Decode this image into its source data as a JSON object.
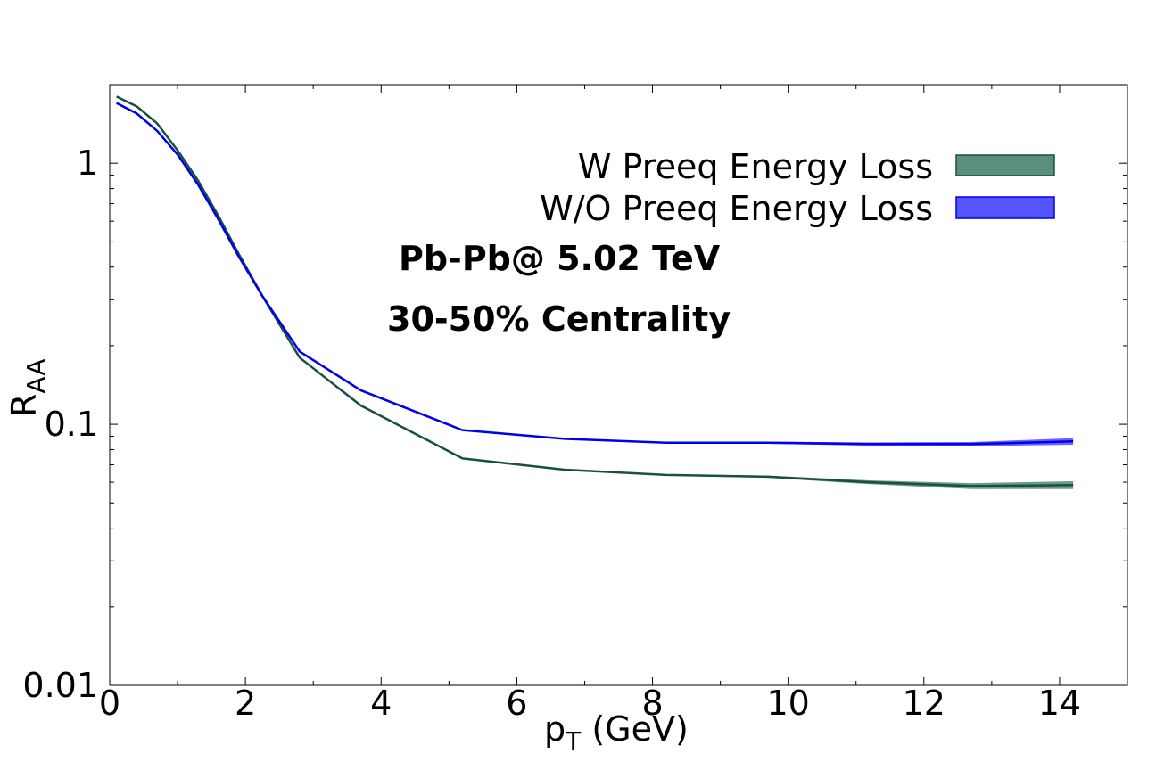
{
  "chart_data": {
    "type": "line",
    "title": "",
    "xlabel": "p",
    "xlabel_sub": "T",
    "xlabel_unit": " (GeV)",
    "ylabel": "R",
    "ylabel_sub": "AA",
    "xlim": [
      0,
      15
    ],
    "ylim": [
      0.01,
      2
    ],
    "yscale": "log",
    "x_ticks": [
      0,
      2,
      4,
      6,
      8,
      10,
      12,
      14
    ],
    "x_tick_labels": [
      "0",
      "2",
      "4",
      "6",
      "8",
      "10",
      "12",
      "14"
    ],
    "y_ticks": [
      0.01,
      0.1,
      1
    ],
    "y_tick_labels": [
      "0.01",
      "0.1",
      "1"
    ],
    "grid": false,
    "legend_position": "top-right",
    "annotations": [
      "Pb-Pb@ 5.02 TeV",
      "30-50% Centrality"
    ],
    "series": [
      {
        "name": "W Preeq Energy Loss",
        "color": "#1a5040",
        "fill": "#5a8f80",
        "x": [
          0.1,
          0.4,
          0.7,
          1.0,
          1.3,
          1.6,
          1.9,
          2.25,
          2.8,
          3.7,
          5.2,
          6.7,
          8.2,
          9.7,
          11.2,
          12.7,
          14.2
        ],
        "values": [
          1.8,
          1.65,
          1.42,
          1.12,
          0.86,
          0.63,
          0.45,
          0.31,
          0.18,
          0.118,
          0.074,
          0.067,
          0.064,
          0.063,
          0.06,
          0.058,
          0.0585
        ],
        "band_low": [
          1.79,
          1.64,
          1.41,
          1.11,
          0.855,
          0.625,
          0.447,
          0.308,
          0.179,
          0.117,
          0.0735,
          0.0665,
          0.0636,
          0.0624,
          0.059,
          0.0565,
          0.0565
        ],
        "band_high": [
          1.81,
          1.66,
          1.43,
          1.13,
          0.865,
          0.635,
          0.453,
          0.312,
          0.181,
          0.119,
          0.0745,
          0.0675,
          0.0644,
          0.0636,
          0.061,
          0.0595,
          0.0605
        ]
      },
      {
        "name": "W/O Preeq Energy Loss",
        "color": "#0000ee",
        "fill": "#5555ff",
        "x": [
          0.1,
          0.4,
          0.7,
          1.0,
          1.3,
          1.6,
          1.9,
          2.25,
          2.8,
          3.7,
          5.2,
          6.7,
          8.2,
          9.7,
          11.2,
          12.7,
          14.2
        ],
        "values": [
          1.7,
          1.55,
          1.33,
          1.08,
          0.83,
          0.61,
          0.44,
          0.31,
          0.19,
          0.135,
          0.095,
          0.088,
          0.085,
          0.085,
          0.084,
          0.084,
          0.086
        ],
        "band_low": [
          1.69,
          1.54,
          1.32,
          1.07,
          0.825,
          0.605,
          0.437,
          0.308,
          0.189,
          0.134,
          0.0945,
          0.0875,
          0.0845,
          0.0842,
          0.0828,
          0.0825,
          0.0835
        ],
        "band_high": [
          1.71,
          1.56,
          1.34,
          1.09,
          0.835,
          0.615,
          0.443,
          0.312,
          0.191,
          0.136,
          0.0955,
          0.0885,
          0.0855,
          0.0858,
          0.0852,
          0.0855,
          0.0885
        ]
      }
    ]
  }
}
